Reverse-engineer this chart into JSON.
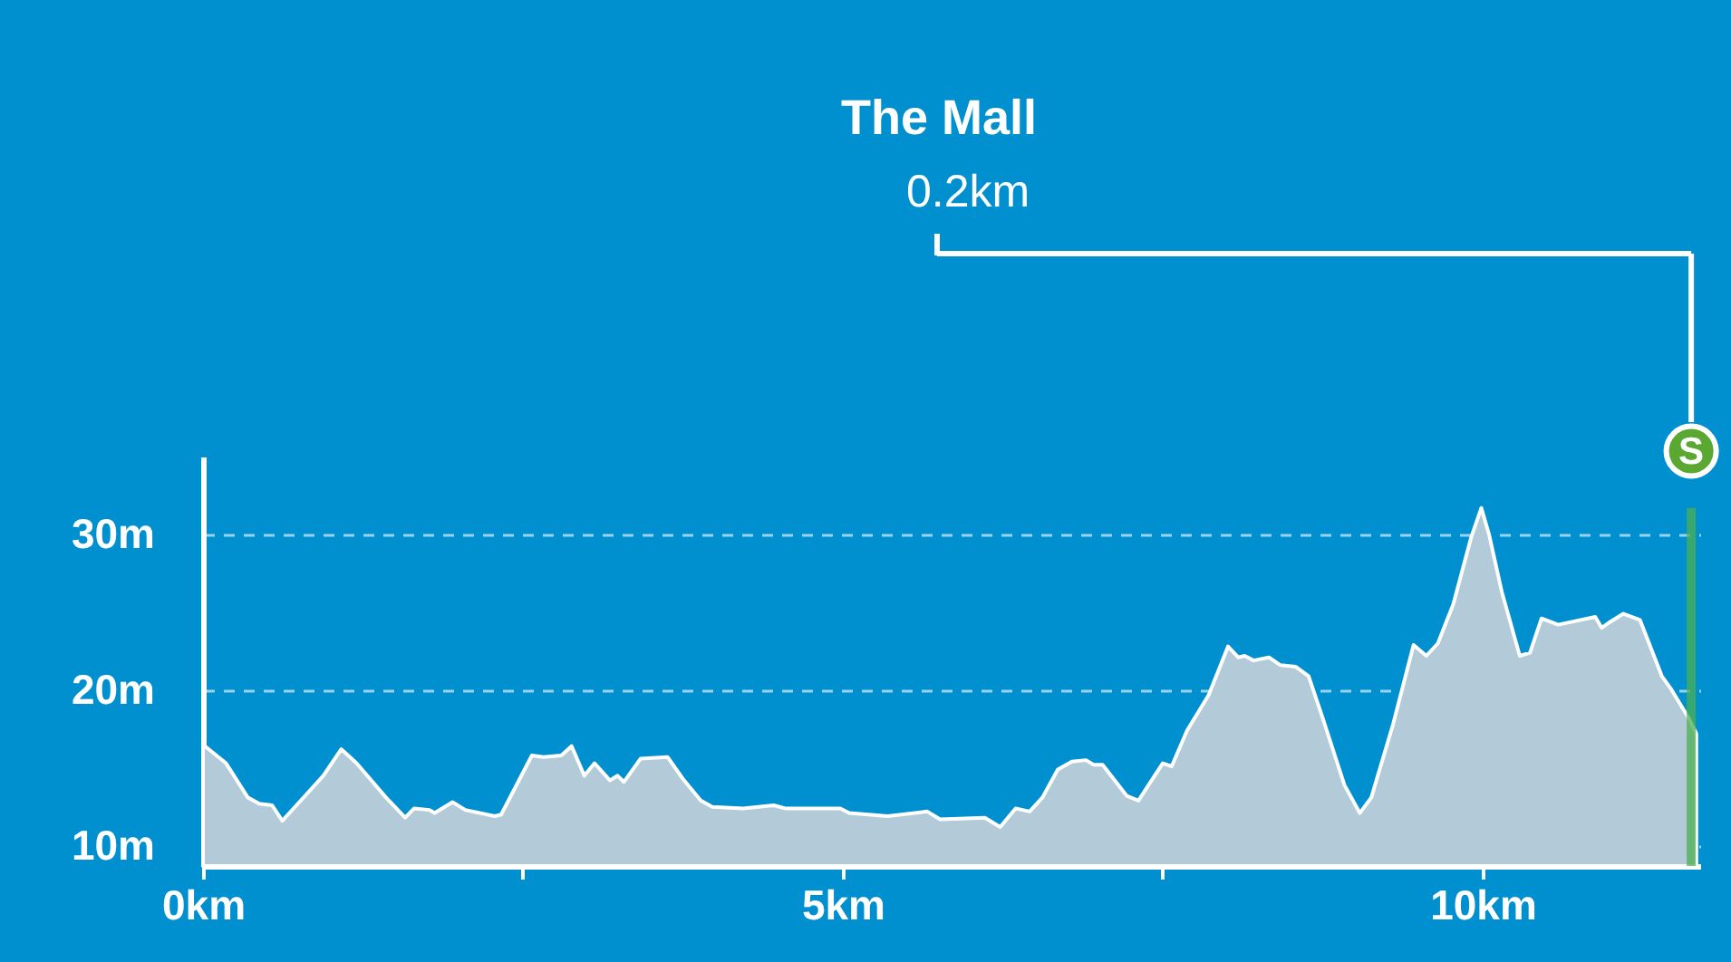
{
  "chart_data": {
    "type": "area",
    "title": "The Mall",
    "subtitle": "0.2km",
    "x": [
      0,
      0.18,
      0.35,
      0.44,
      0.54,
      0.62,
      0.73,
      0.94,
      1.08,
      1.2,
      1.43,
      1.58,
      1.65,
      1.77,
      1.81,
      1.95,
      2.05,
      2.28,
      2.33,
      2.57,
      2.66,
      2.8,
      2.88,
      2.98,
      3.06,
      3.18,
      3.24,
      3.29,
      3.42,
      3.63,
      3.75,
      3.89,
      3.98,
      4.22,
      4.46,
      4.55,
      4.98,
      5.05,
      5.35,
      5.66,
      5.76,
      6.11,
      6.23,
      6.35,
      6.46,
      6.56,
      6.68,
      6.79,
      6.9,
      6.96,
      7.03,
      7.22,
      7.31,
      7.5,
      7.57,
      7.69,
      7.86,
      8.01,
      8.09,
      8.14,
      8.21,
      8.33,
      8.42,
      8.54,
      8.64,
      8.75,
      8.92,
      9.04,
      9.13,
      9.3,
      9.46,
      9.56,
      9.65,
      9.77,
      9.91,
      9.99,
      10.05,
      10.15,
      10.29,
      10.37,
      10.46,
      10.59,
      10.88,
      10.93,
      11.0,
      11.1,
      11.23,
      11.4,
      11.47,
      11.61,
      11.67
    ],
    "series": [
      {
        "color": "#b3cbd8",
        "values": [
          16.5,
          15.3,
          13.1,
          12.7,
          12.6,
          11.6,
          12.6,
          14.5,
          16.2,
          15.3,
          13.1,
          11.8,
          12.4,
          12.3,
          12.1,
          12.8,
          12.3,
          11.9,
          12.0,
          15.8,
          15.7,
          15.8,
          16.4,
          14.5,
          15.3,
          14.2,
          14.5,
          14.1,
          15.6,
          15.7,
          14.3,
          12.9,
          12.5,
          12.4,
          12.6,
          12.4,
          12.4,
          12.1,
          11.9,
          12.2,
          11.7,
          11.8,
          11.2,
          12.4,
          12.2,
          13.1,
          14.9,
          15.4,
          15.5,
          15.2,
          15.2,
          13.2,
          12.9,
          15.3,
          15.1,
          17.4,
          19.7,
          22.8,
          22.1,
          22.2,
          21.9,
          22.1,
          21.6,
          21.5,
          20.9,
          18.2,
          13.9,
          12.1,
          13.1,
          17.8,
          22.9,
          22.2,
          23.0,
          25.5,
          29.8,
          31.7,
          30.0,
          26.3,
          22.2,
          22.4,
          24.6,
          24.2,
          24.7,
          24.0,
          24.4,
          24.9,
          24.5,
          20.9,
          20.1,
          18.2,
          17.2
        ]
      }
    ],
    "xlim": [
      0,
      11.7
    ],
    "xticks": [
      {
        "value": 0,
        "label": "0km"
      },
      {
        "value": 2.5,
        "label": null
      },
      {
        "value": 5,
        "label": "5km"
      },
      {
        "value": 7.5,
        "label": null
      },
      {
        "value": 10,
        "label": "10km"
      }
    ],
    "ylim": [
      8.7,
      35
    ],
    "yticks": [
      {
        "value": 10,
        "label": "10m"
      },
      {
        "value": 20,
        "label": "20m"
      },
      {
        "value": 30,
        "label": "30m"
      }
    ],
    "grid": "y",
    "ref_lines": [
      {
        "axis": "x",
        "value": 11.63,
        "label": "S",
        "color": "#4caf50"
      }
    ]
  }
}
